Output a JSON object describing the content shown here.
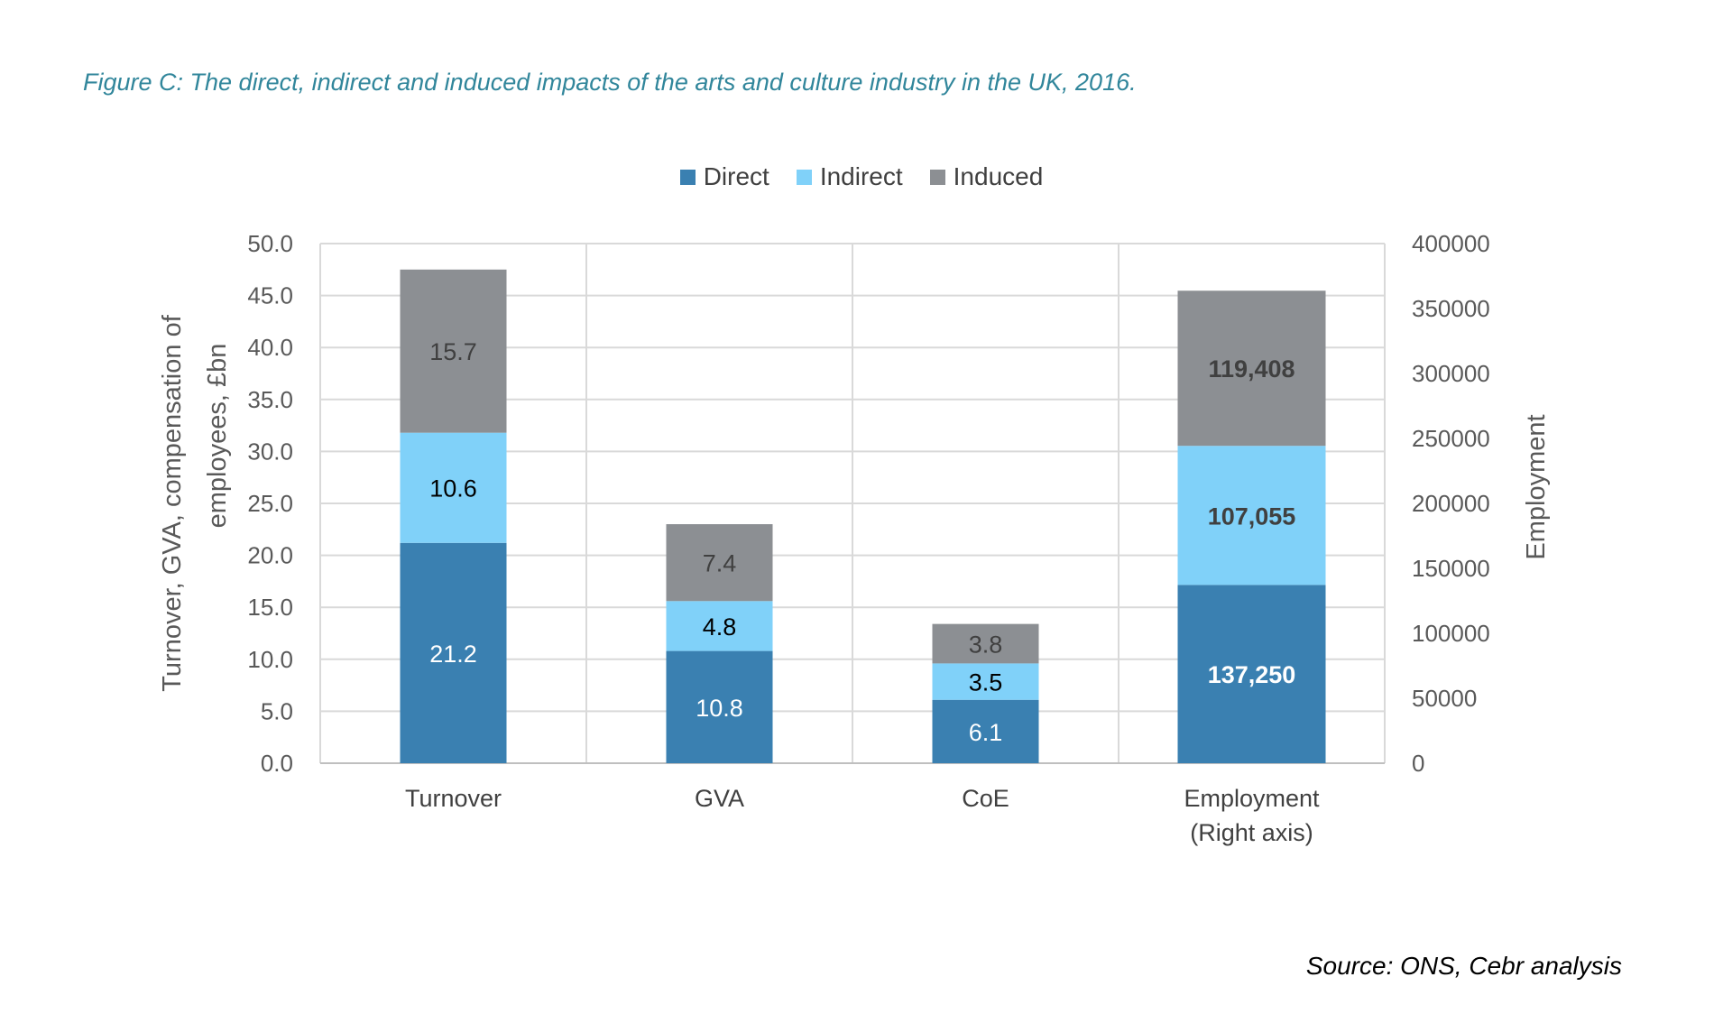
{
  "title": "Figure C: The direct, indirect and induced impacts of the arts and culture industry in the UK, 2016.",
  "source": "Source: ONS, Cebr analysis",
  "legend": [
    {
      "label": "Direct",
      "color": "#3a80b1"
    },
    {
      "label": "Indirect",
      "color": "#80d1f9"
    },
    {
      "label": "Induced",
      "color": "#8c8f93"
    }
  ],
  "chart_data": {
    "type": "bar",
    "stacked": true,
    "categories": [
      "Turnover",
      "GVA",
      "CoE",
      "Employment\n(Right axis)"
    ],
    "series": [
      {
        "name": "Direct",
        "color": "#3a80b1",
        "values": [
          21.2,
          10.8,
          6.1,
          137250
        ],
        "labels": [
          "21.2",
          "10.8",
          "6.1",
          "137,250"
        ],
        "label_colors": [
          "#ffffff",
          "#ffffff",
          "#ffffff",
          "#ffffff"
        ]
      },
      {
        "name": "Indirect",
        "color": "#80d1f9",
        "values": [
          10.6,
          4.8,
          3.5,
          107055
        ],
        "labels": [
          "10.6",
          "4.8",
          "3.5",
          "107,055"
        ],
        "label_colors": [
          "#000000",
          "#000000",
          "#000000",
          "#404040"
        ]
      },
      {
        "name": "Induced",
        "color": "#8c8f93",
        "values": [
          15.7,
          7.4,
          3.8,
          119408
        ],
        "labels": [
          "15.7",
          "7.4",
          "3.8",
          "119,408"
        ],
        "label_colors": [
          "#404040",
          "#404040",
          "#404040",
          "#404040"
        ]
      }
    ],
    "axis_for_category": [
      "left",
      "left",
      "left",
      "right"
    ],
    "bold_labels_for_category": [
      false,
      false,
      false,
      true
    ],
    "ylabel": "Turnover, GVA, compensation of employees, £bn",
    "y2label": "Employment",
    "ylim": [
      0,
      50
    ],
    "y2lim": [
      0,
      400000
    ],
    "yticks": [
      "0.0",
      "5.0",
      "10.0",
      "15.0",
      "20.0",
      "25.0",
      "30.0",
      "35.0",
      "40.0",
      "45.0",
      "50.0"
    ],
    "y2ticks": [
      "0",
      "50000",
      "100000",
      "150000",
      "200000",
      "250000",
      "300000",
      "350000",
      "400000"
    ],
    "grid": true,
    "legend_position": "top"
  }
}
